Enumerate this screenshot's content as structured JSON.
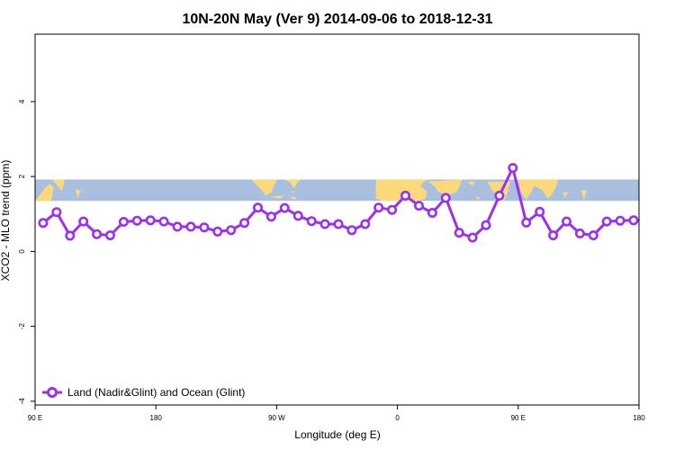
{
  "chart_data": {
    "type": "line",
    "title": "10N-20N May (Ver 9)   2014-09-06 to 2018-12-31",
    "xlabel": "Longitude (deg E)",
    "ylabel": "XCO2 - MLO trend (ppm)",
    "x_ticks": [
      {
        "value": 90,
        "label": "90 E"
      },
      {
        "value": 180,
        "label": "180"
      },
      {
        "value": 270,
        "label": "90 W"
      },
      {
        "value": 360,
        "label": "0"
      },
      {
        "value": 450,
        "label": "90 E"
      },
      {
        "value": 540,
        "label": "180"
      }
    ],
    "y_ticks": [
      {
        "value": -4,
        "label": "-4"
      },
      {
        "value": -2,
        "label": "-2"
      },
      {
        "value": 0,
        "label": "0"
      },
      {
        "value": 2,
        "label": "2"
      },
      {
        "value": 4,
        "label": "4"
      }
    ],
    "xlim": [
      90,
      540
    ],
    "ylim": [
      -4.1,
      5.8
    ],
    "grid": false,
    "legend_position": "bottom-left",
    "map_band": {
      "ylim": [
        1.35,
        1.92
      ],
      "ocean_color": "#a8bfe0",
      "land_color": "#fbd97a"
    },
    "series": [
      {
        "name": "Land (Nadir&Glint) and Ocean (Glint)",
        "color": "#9b30f0",
        "x": [
          96,
          106,
          116,
          126,
          136,
          146,
          156,
          166,
          176,
          186,
          196,
          206,
          216,
          226,
          236,
          246,
          256,
          266,
          276,
          286,
          296,
          306,
          316,
          326,
          336,
          346,
          356,
          366,
          376,
          386,
          396,
          406,
          416,
          426,
          436,
          446,
          456,
          466,
          476,
          486,
          496,
          506,
          516,
          526,
          536
        ],
        "y": [
          0.76,
          1.05,
          0.42,
          0.8,
          0.46,
          0.43,
          0.79,
          0.82,
          0.83,
          0.8,
          0.66,
          0.66,
          0.64,
          0.53,
          0.57,
          0.76,
          1.17,
          0.93,
          1.16,
          0.95,
          0.81,
          0.73,
          0.73,
          0.57,
          0.73,
          1.17,
          1.11,
          1.49,
          1.22,
          1.03,
          1.43,
          0.5,
          0.37,
          0.7,
          1.49,
          2.23,
          0.77,
          1.06,
          0.43,
          0.8,
          0.48,
          0.43,
          0.8,
          0.82,
          0.83
        ]
      }
    ]
  }
}
